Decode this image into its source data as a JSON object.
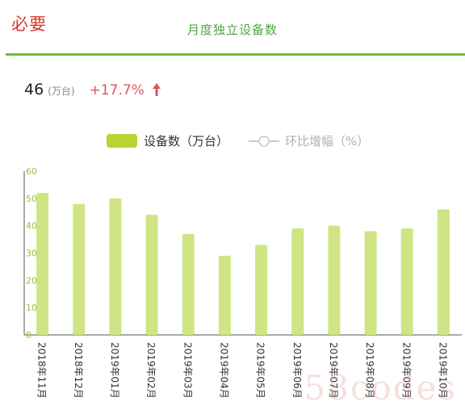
{
  "brand": {
    "text": "必要"
  },
  "header": {
    "title": "月度独立设备数"
  },
  "summary": {
    "value": "46",
    "unit": "(万台)",
    "change": "+17.7%"
  },
  "colors": {
    "bar": "#cfe585",
    "legend_bar": "#b6d434",
    "axis_text": "#8dc63f",
    "change": "#e0555a",
    "rule": "#6cbf3a"
  },
  "chart_data": {
    "type": "bar",
    "categories": [
      "2018年11月",
      "2018年12月",
      "2019年01月",
      "2019年02月",
      "2019年03月",
      "2019年04月",
      "2019年05月",
      "2019年06月",
      "2019年07月",
      "2019年08月",
      "2019年09月",
      "2019年10月"
    ],
    "series": [
      {
        "name": "设备数（万台）",
        "values": [
          52,
          48,
          50,
          44,
          37,
          29,
          33,
          39,
          40,
          38,
          39,
          46
        ]
      }
    ],
    "legend": [
      {
        "label": "设备数（万台）",
        "kind": "bar",
        "active": true
      },
      {
        "label": "环比增幅（%）",
        "kind": "line",
        "active": false
      }
    ],
    "yticks": [
      "0",
      "10",
      "20",
      "30",
      "40",
      "50",
      "60"
    ],
    "ylim": [
      0,
      60
    ],
    "grid": false,
    "legend_position": "top-center"
  },
  "watermark": {
    "text": "58codes"
  }
}
